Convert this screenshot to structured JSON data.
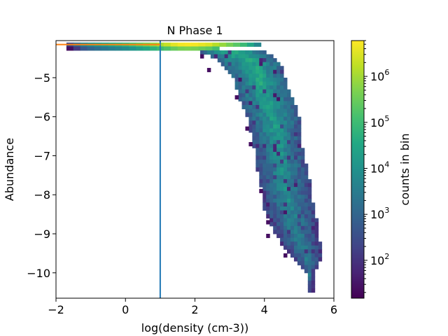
{
  "chart_data": {
    "type": "heatmap",
    "title": "N Phase 1",
    "xlabel": "log(density (cm-3))",
    "ylabel": "Abundance",
    "xlim": [
      -2,
      6
    ],
    "ylim": [
      -10.65,
      -4.05
    ],
    "x_ticks": [
      -2,
      0,
      2,
      4,
      6
    ],
    "y_ticks": [
      -5,
      -6,
      -7,
      -8,
      -9,
      -10
    ],
    "colorbar": {
      "label": "counts in bin",
      "scale": "log",
      "range": [
        15,
        6000000
      ],
      "tick_values": [
        100,
        1000,
        10000,
        100000,
        1000000
      ],
      "tick_labels": [
        "10",
        "10",
        "10",
        "10",
        "10"
      ],
      "tick_exponents": [
        "2",
        "3",
        "4",
        "5",
        "6"
      ],
      "colormap": "viridis"
    },
    "reference_lines": [
      {
        "orientation": "vertical",
        "value": 1.0,
        "color": "#1f77b4"
      },
      {
        "orientation": "horizontal",
        "value": -4.15,
        "x_range": [
          -2,
          1
        ],
        "color": "#ff7f0e"
      }
    ],
    "band_cells": [
      {
        "x": -1.6,
        "c": 300
      },
      {
        "x": -1.4,
        "c": 1500
      },
      {
        "x": -1.2,
        "c": 6000
      },
      {
        "x": -1.0,
        "c": 12000
      },
      {
        "x": -0.8,
        "c": 20000
      },
      {
        "x": -0.6,
        "c": 30000
      },
      {
        "x": -0.4,
        "c": 45000
      },
      {
        "x": -0.2,
        "c": 60000
      },
      {
        "x": 0.0,
        "c": 90000
      },
      {
        "x": 0.2,
        "c": 150000
      },
      {
        "x": 0.4,
        "c": 250000
      },
      {
        "x": 0.6,
        "c": 400000
      },
      {
        "x": 0.8,
        "c": 700000
      },
      {
        "x": 1.0,
        "c": 1200000
      },
      {
        "x": 1.2,
        "c": 2000000
      },
      {
        "x": 1.4,
        "c": 3500000
      },
      {
        "x": 1.6,
        "c": 5000000
      },
      {
        "x": 1.8,
        "c": 5500000
      },
      {
        "x": 2.0,
        "c": 5000000
      },
      {
        "x": 2.2,
        "c": 4000000
      },
      {
        "x": 2.4,
        "c": 3000000
      },
      {
        "x": 2.6,
        "c": 1500000
      },
      {
        "x": 2.8,
        "c": 800000
      },
      {
        "x": 3.0,
        "c": 400000
      },
      {
        "x": 3.2,
        "c": 200000
      },
      {
        "x": 3.4,
        "c": 90000
      },
      {
        "x": 3.6,
        "c": 30000
      },
      {
        "x": 3.8,
        "c": 5000
      }
    ],
    "tail_profile": [
      {
        "y": -4.3,
        "lo": 2.0,
        "hi": 3.95
      },
      {
        "y": -4.5,
        "lo": 2.6,
        "hi": 4.3
      },
      {
        "y": -4.7,
        "lo": 2.8,
        "hi": 4.5
      },
      {
        "y": -5.0,
        "lo": 3.1,
        "hi": 4.6
      },
      {
        "y": -5.3,
        "lo": 3.2,
        "hi": 4.7
      },
      {
        "y": -5.6,
        "lo": 3.3,
        "hi": 4.85
      },
      {
        "y": -6.0,
        "lo": 3.5,
        "hi": 5.0
      },
      {
        "y": -6.4,
        "lo": 3.6,
        "hi": 5.05
      },
      {
        "y": -6.8,
        "lo": 3.7,
        "hi": 5.1
      },
      {
        "y": -7.2,
        "lo": 3.75,
        "hi": 5.2
      },
      {
        "y": -7.6,
        "lo": 3.85,
        "hi": 5.3
      },
      {
        "y": -8.0,
        "lo": 3.95,
        "hi": 5.35
      },
      {
        "y": -8.4,
        "lo": 4.0,
        "hi": 5.45
      },
      {
        "y": -8.8,
        "lo": 4.2,
        "hi": 5.55
      },
      {
        "y": -9.2,
        "lo": 4.45,
        "hi": 5.6
      },
      {
        "y": -9.6,
        "lo": 4.8,
        "hi": 5.7
      },
      {
        "y": -10.0,
        "lo": 5.2,
        "hi": 5.4
      },
      {
        "y": -10.5,
        "lo": 5.3,
        "hi": 5.4
      }
    ]
  }
}
